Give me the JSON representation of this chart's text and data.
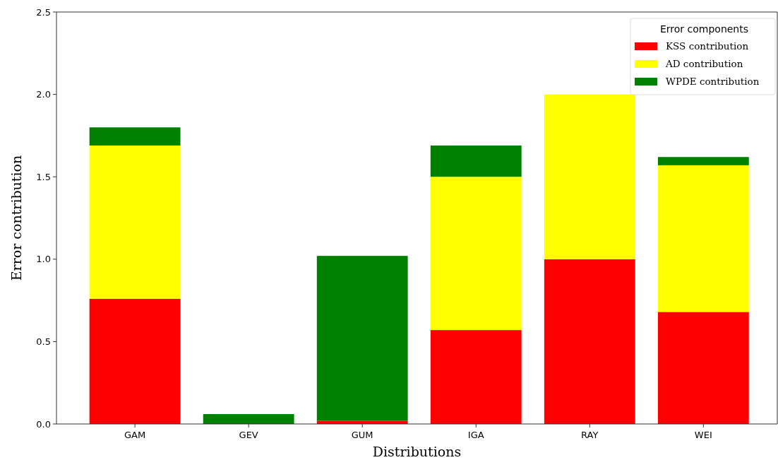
{
  "chart_data": {
    "type": "bar",
    "xlabel": "Distributions",
    "ylabel": "Error contribution",
    "legend_title": "Error components",
    "categories": [
      "GAM",
      "GEV",
      "GUM",
      "IGA",
      "RAY",
      "WEI"
    ],
    "stacked": true,
    "ylim": [
      0,
      2.5
    ],
    "yticks": [
      {
        "value": 0,
        "label": "0.0"
      },
      {
        "value": 0.5,
        "label": "0.5"
      },
      {
        "value": 1,
        "label": "1.0"
      },
      {
        "value": 1.5,
        "label": "1.5"
      },
      {
        "value": 2,
        "label": "2.0"
      },
      {
        "value": 2.5,
        "label": "2.5"
      }
    ],
    "legend": "top right",
    "series": [
      {
        "name": "KSS contribution",
        "color": "#ff0000",
        "values": [
          0.76,
          0,
          0.02,
          0.57,
          1.0,
          0.68
        ]
      },
      {
        "name": "AD contribution",
        "color": "#ffff00",
        "values": [
          0.93,
          0,
          0,
          0.93,
          1.0,
          0.89
        ]
      },
      {
        "name": "WPDE contribution",
        "color": "#008000",
        "values": [
          0.11,
          0.06,
          1.0,
          0.19,
          0,
          0.05
        ]
      }
    ]
  }
}
